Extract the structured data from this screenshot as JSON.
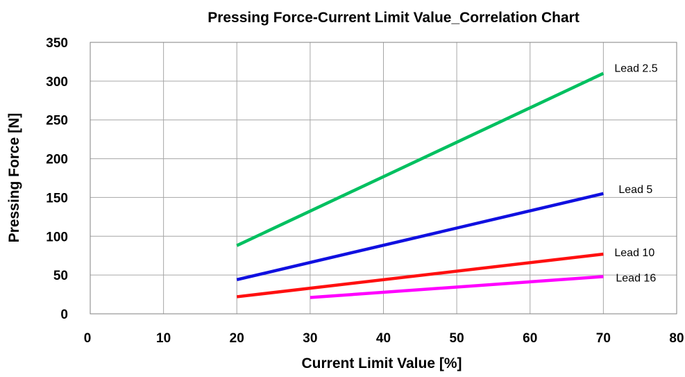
{
  "chart_data": {
    "type": "line",
    "title": "Pressing Force-Current Limit Value_Correlation Chart",
    "xlabel": "Current Limit Value [%]",
    "ylabel": "Pressing Force [N]",
    "xlim": [
      0,
      80
    ],
    "ylim": [
      0,
      350
    ],
    "x_ticks": [
      0,
      10,
      20,
      30,
      40,
      50,
      60,
      70,
      80
    ],
    "y_ticks": [
      0,
      50,
      100,
      150,
      200,
      250,
      300,
      350
    ],
    "grid": true,
    "legend": "none",
    "series": [
      {
        "name": "Lead 2.5",
        "color": "#00c060",
        "x": [
          20,
          70
        ],
        "values": [
          88,
          310
        ]
      },
      {
        "name": "Lead 5",
        "color": "#1010e0",
        "x": [
          20,
          70
        ],
        "values": [
          44,
          155
        ]
      },
      {
        "name": "Lead 10",
        "color": "#ff1010",
        "x": [
          20,
          70
        ],
        "values": [
          22,
          77
        ]
      },
      {
        "name": "Lead 16",
        "color": "#ff00ff",
        "x": [
          30,
          70
        ],
        "values": [
          21,
          48
        ]
      }
    ]
  }
}
